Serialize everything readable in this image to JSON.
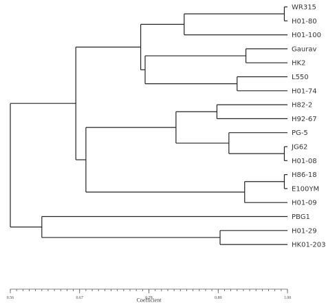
{
  "chart_data": {
    "type": "dendrogram",
    "xlabel": "Coefficient",
    "xlim": [
      0.56,
      1.0
    ],
    "ticks": [
      {
        "value": 0.56,
        "label": "0.56"
      },
      {
        "value": 0.67,
        "label": "0.67"
      },
      {
        "value": 0.78,
        "label": "0.78"
      },
      {
        "value": 0.89,
        "label": "0.89"
      },
      {
        "value": 1.0,
        "label": "1.00"
      }
    ],
    "leaves": [
      "WR315",
      "H01-80",
      "H01-100",
      "Gaurav",
      "HK2",
      "L550",
      "H01-74",
      "H82-2",
      "H92-67",
      "PG-5",
      "JG62",
      "H01-08",
      "H86-18",
      "E100YM",
      "H01-09",
      "PBG1",
      "H01-29",
      "HK01-203"
    ],
    "merges": [
      {
        "id": "m1",
        "children": [
          "WR315",
          "H01-80"
        ],
        "height": 0.995
      },
      {
        "id": "m2",
        "children": [
          "m1",
          "H01-100"
        ],
        "height": 0.836
      },
      {
        "id": "m3",
        "children": [
          "Gaurav",
          "HK2"
        ],
        "height": 0.934
      },
      {
        "id": "m4",
        "children": [
          "L550",
          "H01-74"
        ],
        "height": 0.92
      },
      {
        "id": "m5",
        "children": [
          "m3",
          "m4"
        ],
        "height": 0.774
      },
      {
        "id": "m6",
        "children": [
          "m2",
          "m5"
        ],
        "height": 0.767
      },
      {
        "id": "m7",
        "children": [
          "H82-2",
          "H92-67"
        ],
        "height": 0.888
      },
      {
        "id": "m8",
        "children": [
          "JG62",
          "H01-08"
        ],
        "height": 0.995
      },
      {
        "id": "m9",
        "children": [
          "PG-5",
          "m8"
        ],
        "height": 0.907
      },
      {
        "id": "m10",
        "children": [
          "m7",
          "m9"
        ],
        "height": 0.823
      },
      {
        "id": "m11",
        "children": [
          "H86-18",
          "E100YM"
        ],
        "height": 0.995
      },
      {
        "id": "m12",
        "children": [
          "m11",
          "H01-09"
        ],
        "height": 0.932
      },
      {
        "id": "m13",
        "children": [
          "m10",
          "m12"
        ],
        "height": 0.68
      },
      {
        "id": "m14",
        "children": [
          "m6",
          "m13"
        ],
        "height": 0.664
      },
      {
        "id": "m15",
        "children": [
          "H01-29",
          "HK01-203"
        ],
        "height": 0.893
      },
      {
        "id": "m16",
        "children": [
          "PBG1",
          "m15"
        ],
        "height": 0.61
      },
      {
        "id": "m17",
        "children": [
          "m14",
          "m16"
        ],
        "height": 0.56
      }
    ]
  }
}
